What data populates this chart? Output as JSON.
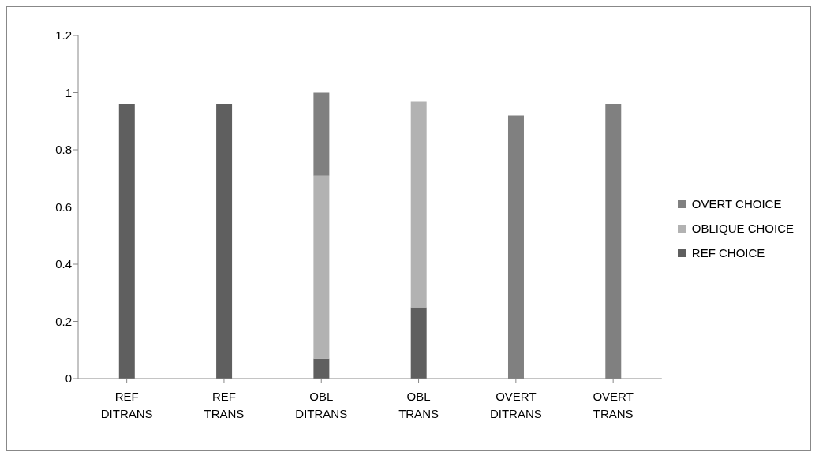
{
  "chart_data": {
    "type": "bar",
    "stacked": true,
    "categories": [
      "REF DITRANS",
      "REF TRANS",
      "OBL DITRANS",
      "OBL TRANS",
      "OVERT DITRANS",
      "OVERT TRANS"
    ],
    "series": [
      {
        "name": "REF CHOICE",
        "color": "#5f5f5f",
        "values": [
          0.96,
          0.96,
          0.07,
          0.25,
          0,
          0
        ]
      },
      {
        "name": "OBLIQUE CHOICE",
        "color": "#b2b2b2",
        "values": [
          0,
          0,
          0.64,
          0.72,
          0,
          0
        ]
      },
      {
        "name": "OVERT CHOICE",
        "color": "#808080",
        "values": [
          0,
          0,
          0.29,
          0,
          0.92,
          0.96
        ]
      }
    ],
    "ylim": [
      0,
      1.2
    ],
    "yticks": [
      0,
      0.2,
      0.4,
      0.6,
      0.8,
      1,
      1.2
    ],
    "grid": false,
    "legend": "right"
  }
}
